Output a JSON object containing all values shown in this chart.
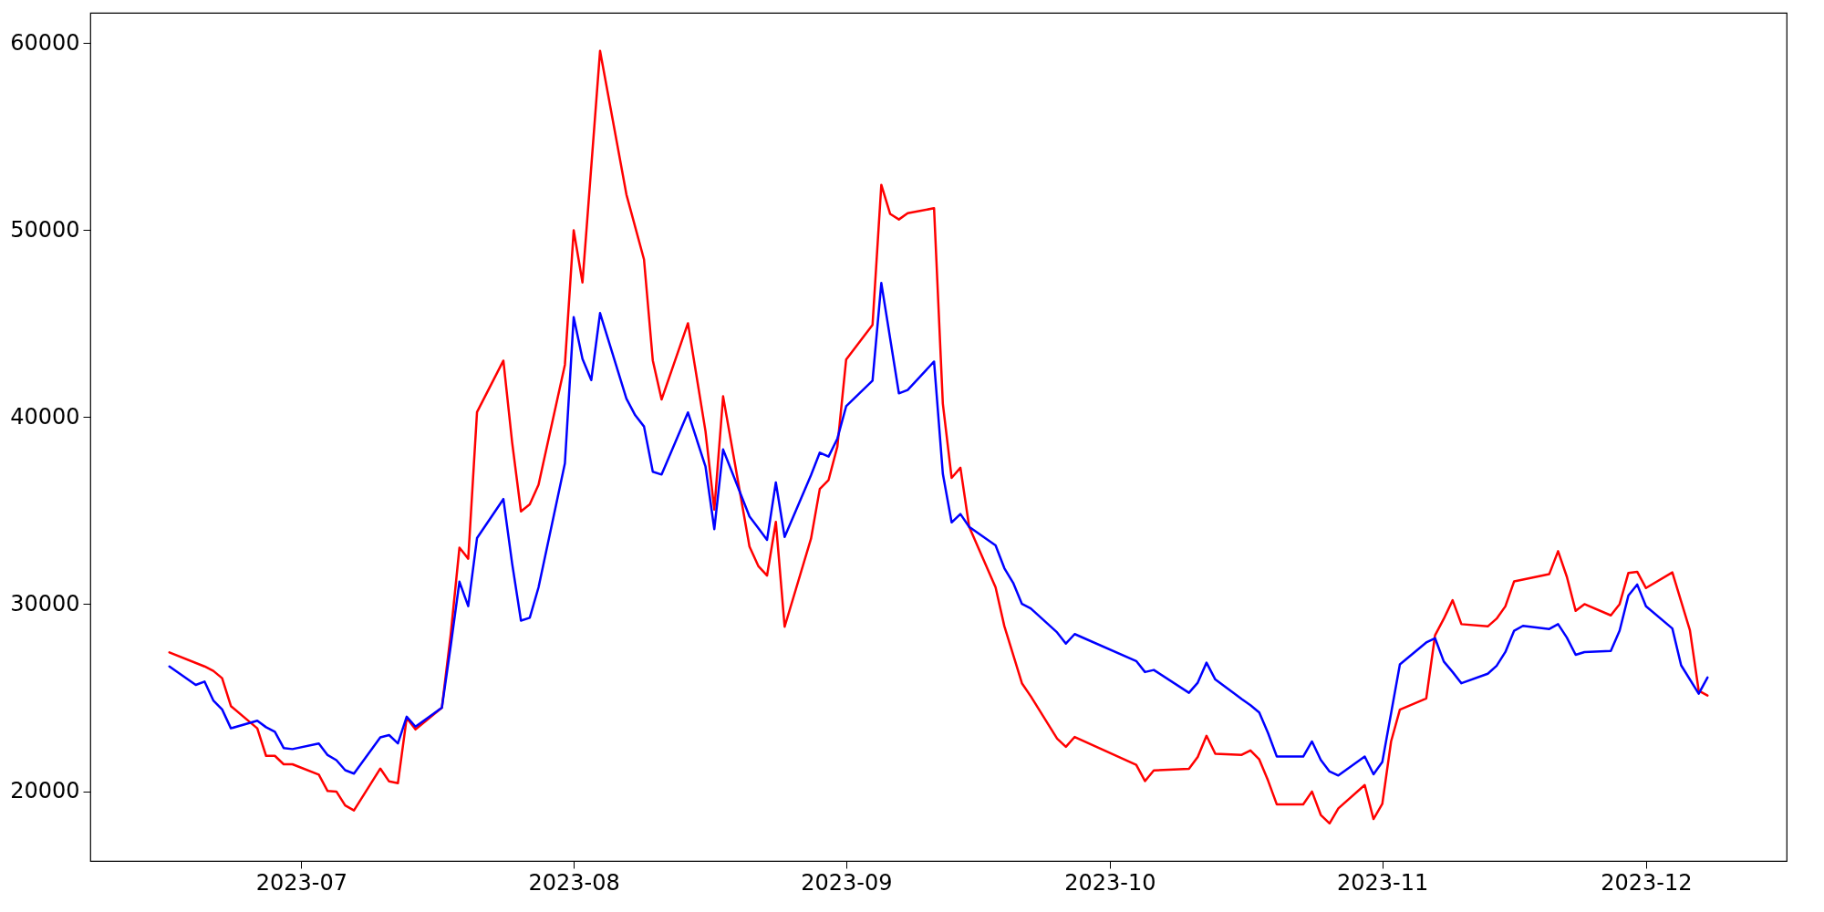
{
  "chart_data": {
    "type": "line",
    "xlim": [
      "2023-06-07",
      "2023-12-17"
    ],
    "ylim": [
      16270,
      61620
    ],
    "xticks": [
      {
        "value": "2023-07-01",
        "label": "2023-07"
      },
      {
        "value": "2023-08-01",
        "label": "2023-08"
      },
      {
        "value": "2023-09-01",
        "label": "2023-09"
      },
      {
        "value": "2023-10-01",
        "label": "2023-10"
      },
      {
        "value": "2023-11-01",
        "label": "2023-11"
      },
      {
        "value": "2023-12-01",
        "label": "2023-12"
      }
    ],
    "yticks": [
      20000,
      30000,
      40000,
      50000,
      60000
    ],
    "grid": false,
    "series": [
      {
        "color": "#ff0000",
        "x": [
          "2023-06-16",
          "2023-06-20",
          "2023-06-21",
          "2023-06-22",
          "2023-06-23",
          "2023-06-26",
          "2023-06-27",
          "2023-06-28",
          "2023-06-29",
          "2023-06-30",
          "2023-07-03",
          "2023-07-04",
          "2023-07-05",
          "2023-07-06",
          "2023-07-07",
          "2023-07-10",
          "2023-07-11",
          "2023-07-12",
          "2023-07-13",
          "2023-07-14",
          "2023-07-17",
          "2023-07-18",
          "2023-07-19",
          "2023-07-20",
          "2023-07-21",
          "2023-07-24",
          "2023-07-25",
          "2023-07-26",
          "2023-07-27",
          "2023-07-28",
          "2023-07-31",
          "2023-08-01",
          "2023-08-02",
          "2023-08-04",
          "2023-08-07",
          "2023-08-09",
          "2023-08-10",
          "2023-08-11",
          "2023-08-14",
          "2023-08-16",
          "2023-08-17",
          "2023-08-18",
          "2023-08-21",
          "2023-08-22",
          "2023-08-23",
          "2023-08-24",
          "2023-08-25",
          "2023-08-28",
          "2023-08-29",
          "2023-08-30",
          "2023-08-31",
          "2023-09-01",
          "2023-09-04",
          "2023-09-05",
          "2023-09-06",
          "2023-09-07",
          "2023-09-08",
          "2023-09-11",
          "2023-09-12",
          "2023-09-13",
          "2023-09-14",
          "2023-09-15",
          "2023-09-18",
          "2023-09-19",
          "2023-09-21",
          "2023-09-22",
          "2023-09-25",
          "2023-09-26",
          "2023-09-27",
          "2023-10-04",
          "2023-10-05",
          "2023-10-06",
          "2023-10-10",
          "2023-10-11",
          "2023-10-12",
          "2023-10-13",
          "2023-10-16",
          "2023-10-17",
          "2023-10-18",
          "2023-10-19",
          "2023-10-20",
          "2023-10-23",
          "2023-10-24",
          "2023-10-25",
          "2023-10-26",
          "2023-10-27",
          "2023-10-30",
          "2023-10-31",
          "2023-11-01",
          "2023-11-02",
          "2023-11-03",
          "2023-11-06",
          "2023-11-07",
          "2023-11-08",
          "2023-11-09",
          "2023-11-10",
          "2023-11-13",
          "2023-11-14",
          "2023-11-15",
          "2023-11-16",
          "2023-11-20",
          "2023-11-21",
          "2023-11-22",
          "2023-11-23",
          "2023-11-24",
          "2023-11-27",
          "2023-11-28",
          "2023-11-29",
          "2023-11-30",
          "2023-12-01",
          "2023-12-04",
          "2023-12-05",
          "2023-12-06",
          "2023-12-07",
          "2023-12-08"
        ],
        "values": [
          27420,
          26670,
          26430,
          26040,
          24550,
          23360,
          21890,
          21890,
          21440,
          21440,
          20880,
          20010,
          19980,
          19240,
          18970,
          21210,
          20520,
          20430,
          23920,
          23300,
          24460,
          28340,
          33020,
          32430,
          40270,
          43020,
          38630,
          34960,
          35340,
          36390,
          42800,
          49990,
          47200,
          59580,
          51900,
          48430,
          43030,
          40940,
          45020,
          39230,
          35050,
          41110,
          33080,
          32040,
          31530,
          34400,
          28790,
          33500,
          36160,
          36640,
          38430,
          43080,
          44930,
          52420,
          50870,
          50570,
          50900,
          51170,
          40720,
          36750,
          37290,
          34130,
          30900,
          28820,
          25770,
          25080,
          22810,
          22370,
          22900,
          21410,
          20540,
          21110,
          21200,
          21830,
          22960,
          22000,
          21940,
          22180,
          21700,
          20570,
          19290,
          19290,
          19980,
          18730,
          18280,
          19080,
          20330,
          18510,
          19320,
          22660,
          24360,
          24960,
          28330,
          29220,
          30210,
          28930,
          28810,
          29220,
          29880,
          31220,
          31610,
          32830,
          31460,
          29640,
          30000,
          29400,
          30000,
          31670,
          31730,
          30860,
          31700,
          30150,
          28600,
          25370,
          25110
        ]
      },
      {
        "color": "#0000ff",
        "x": [
          "2023-06-16",
          "2023-06-19",
          "2023-06-20",
          "2023-06-21",
          "2023-06-22",
          "2023-06-23",
          "2023-06-26",
          "2023-06-27",
          "2023-06-28",
          "2023-06-29",
          "2023-06-30",
          "2023-07-03",
          "2023-07-04",
          "2023-07-05",
          "2023-07-06",
          "2023-07-07",
          "2023-07-10",
          "2023-07-11",
          "2023-07-12",
          "2023-07-13",
          "2023-07-14",
          "2023-07-17",
          "2023-07-18",
          "2023-07-19",
          "2023-07-20",
          "2023-07-21",
          "2023-07-24",
          "2023-07-25",
          "2023-07-26",
          "2023-07-27",
          "2023-07-28",
          "2023-07-31",
          "2023-08-01",
          "2023-08-02",
          "2023-08-03",
          "2023-08-04",
          "2023-08-07",
          "2023-08-08",
          "2023-08-09",
          "2023-08-10",
          "2023-08-11",
          "2023-08-14",
          "2023-08-16",
          "2023-08-17",
          "2023-08-18",
          "2023-08-21",
          "2023-08-22",
          "2023-08-23",
          "2023-08-24",
          "2023-08-25",
          "2023-08-28",
          "2023-08-29",
          "2023-08-30",
          "2023-08-31",
          "2023-09-01",
          "2023-09-04",
          "2023-09-05",
          "2023-09-07",
          "2023-09-08",
          "2023-09-11",
          "2023-09-12",
          "2023-09-13",
          "2023-09-14",
          "2023-09-15",
          "2023-09-18",
          "2023-09-19",
          "2023-09-20",
          "2023-09-21",
          "2023-09-22",
          "2023-09-25",
          "2023-09-26",
          "2023-09-27",
          "2023-10-04",
          "2023-10-05",
          "2023-10-06",
          "2023-10-10",
          "2023-10-11",
          "2023-10-12",
          "2023-10-13",
          "2023-10-16",
          "2023-10-17",
          "2023-10-18",
          "2023-10-19",
          "2023-10-20",
          "2023-10-23",
          "2023-10-24",
          "2023-10-25",
          "2023-10-26",
          "2023-10-27",
          "2023-10-30",
          "2023-10-31",
          "2023-11-01",
          "2023-11-03",
          "2023-11-06",
          "2023-11-07",
          "2023-11-08",
          "2023-11-09",
          "2023-11-10",
          "2023-11-13",
          "2023-11-14",
          "2023-11-15",
          "2023-11-16",
          "2023-11-17",
          "2023-11-20",
          "2023-11-21",
          "2023-11-22",
          "2023-11-23",
          "2023-11-24",
          "2023-11-27",
          "2023-11-28",
          "2023-11-29",
          "2023-11-30",
          "2023-12-01",
          "2023-12-04",
          "2023-12-05",
          "2023-12-07",
          "2023-12-08"
        ],
        "values": [
          26670,
          25680,
          25860,
          24850,
          24370,
          23360,
          23770,
          23420,
          23180,
          22310,
          22250,
          22550,
          21930,
          21660,
          21120,
          20940,
          22880,
          23000,
          22550,
          23980,
          23450,
          24460,
          27740,
          31200,
          29890,
          33530,
          35620,
          32160,
          29120,
          29270,
          30900,
          37530,
          45350,
          43110,
          41980,
          45560,
          40990,
          40100,
          39500,
          37080,
          36930,
          40250,
          37350,
          34010,
          38270,
          34690,
          34070,
          33440,
          36510,
          33590,
          36900,
          38100,
          37890,
          38850,
          40580,
          41950,
          47170,
          41270,
          41450,
          42970,
          36970,
          34370,
          34820,
          34130,
          33140,
          31920,
          31140,
          30010,
          29770,
          28490,
          27890,
          28400,
          26960,
          26370,
          26480,
          25260,
          25800,
          26870,
          25970,
          24930,
          24600,
          24210,
          23110,
          21850,
          21850,
          22660,
          21670,
          21050,
          20840,
          21850,
          20900,
          21560,
          26780,
          27950,
          28180,
          26930,
          26370,
          25770,
          26280,
          26700,
          27440,
          28580,
          28840,
          28670,
          28930,
          28210,
          27290,
          27440,
          27500,
          28580,
          30460,
          31050,
          29890,
          28700,
          26730,
          25210,
          26080
        ]
      }
    ]
  }
}
